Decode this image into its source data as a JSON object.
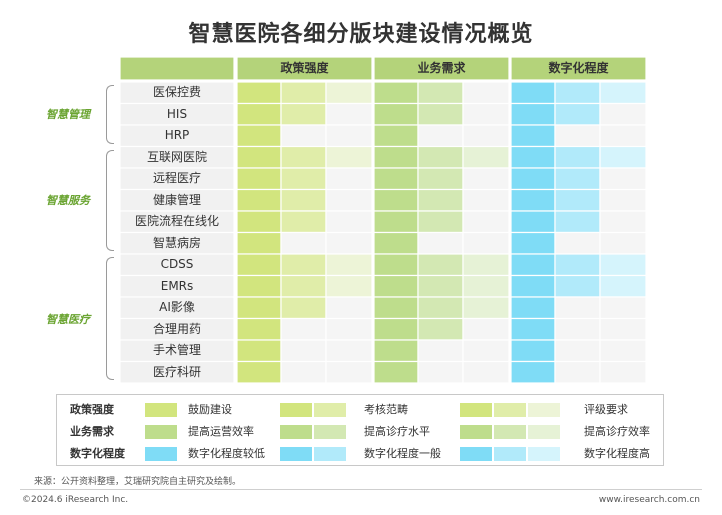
{
  "title": "智慧医院各细分版块建设情况概览",
  "colors": {
    "policy": [
      "#d2e57e",
      "#e0eda9",
      "#edf4d7"
    ],
    "business": [
      "#bedd8c",
      "#d3e8b3",
      "#e6f2d6"
    ],
    "digital": [
      "#7fdcf6",
      "#b1eafa",
      "#d5f4fc"
    ],
    "empty": "#f5f5f5",
    "header": "#b4d37a",
    "label_bg": "#f1f1f1"
  },
  "chart_data": {
    "type": "table",
    "title": "智慧医院各细分版块建设情况概览",
    "columns": [
      "政策强度",
      "业务需求",
      "数字化程度"
    ],
    "groups": [
      {
        "name": "智慧管理",
        "rows": [
          "医保控费",
          "HIS",
          "HRP"
        ]
      },
      {
        "name": "智慧服务",
        "rows": [
          "互联网医院",
          "远程医疗",
          "健康管理",
          "医院流程在线化",
          "智慧病房"
        ]
      },
      {
        "name": "智慧医疗",
        "rows": [
          "CDSS",
          "EMRs",
          "AI影像",
          "合理用药",
          "手术管理",
          "医疗科研"
        ]
      }
    ],
    "values": {
      "医保控费": [
        3,
        2,
        3
      ],
      "HIS": [
        2,
        2,
        2
      ],
      "HRP": [
        1,
        1,
        1
      ],
      "互联网医院": [
        3,
        3,
        3
      ],
      "远程医疗": [
        2,
        2,
        2
      ],
      "健康管理": [
        2,
        2,
        2
      ],
      "医院流程在线化": [
        2,
        2,
        2
      ],
      "智慧病房": [
        1,
        1,
        1
      ],
      "CDSS": [
        3,
        3,
        3
      ],
      "EMRs": [
        3,
        3,
        3
      ],
      "AI影像": [
        2,
        3,
        1
      ],
      "合理用药": [
        1,
        2,
        1
      ],
      "手术管理": [
        1,
        1,
        1
      ],
      "医疗科研": [
        1,
        1,
        1
      ]
    }
  },
  "legend": [
    {
      "category": "政策强度",
      "levels": [
        "鼓励建设",
        "考核范畴",
        "评级要求"
      ]
    },
    {
      "category": "业务需求",
      "levels": [
        "提高运营效率",
        "提高诊疗水平",
        "提高诊疗效率"
      ]
    },
    {
      "category": "数字化程度",
      "levels": [
        "数字化程度较低",
        "数字化程度一般",
        "数字化程度高"
      ]
    }
  ],
  "source": "来源：公开资料整理，艾瑞研究院自主研究及绘制。",
  "copyright": "©2024.6 iResearch Inc.",
  "website": "www.iresearch.com.cn"
}
